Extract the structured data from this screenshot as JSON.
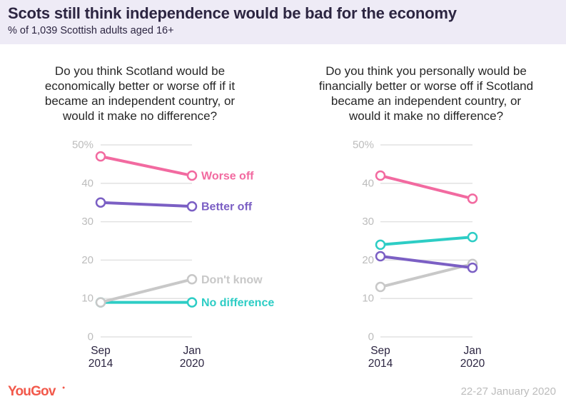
{
  "header": {
    "title": "Scots still think independence would be bad for the economy",
    "subtitle": "% of 1,039 Scottish adults aged 16+"
  },
  "footer": {
    "logo": "YouGov",
    "date": "22-27 January 2020"
  },
  "colors": {
    "header_background": "#eeebf6",
    "title": "#2c2541",
    "worse_off": "#f26aa0",
    "better_off": "#7b5fc4",
    "no_difference": "#2dcdc5",
    "dont_know": "#c8c8c8",
    "gridline": "#e2e2e2",
    "tick_label": "#bcbcbc",
    "logo": "#f2594b"
  },
  "chart_data": [
    {
      "type": "line",
      "title": "Do you think Scotland would be economically better or worse off if it became an independent country, or would it make no difference?",
      "question_lines": [
        "Do you think Scotland would be",
        "economically better or worse off if it",
        "became an independent country, or",
        "would it make no difference?"
      ],
      "x": [
        "Sep 2014",
        "Jan 2020"
      ],
      "x_tick_lines": [
        [
          "Sep",
          "2014"
        ],
        [
          "Jan",
          "2020"
        ]
      ],
      "xlabel": "",
      "ylabel": "",
      "ylim": [
        0,
        50
      ],
      "yticks": [
        0,
        10,
        20,
        30,
        40,
        50
      ],
      "ytick_labels": [
        "0",
        "10",
        "20",
        "30",
        "40",
        "50%"
      ],
      "grid": true,
      "legend": "direct-labels-right",
      "series": [
        {
          "name": "No difference",
          "values": [
            9,
            9
          ],
          "color": "#2dcdc5",
          "show_label": true
        },
        {
          "name": "Don't know",
          "values": [
            9,
            15
          ],
          "color": "#c8c8c8",
          "show_label": true
        },
        {
          "name": "Better off",
          "values": [
            35,
            34
          ],
          "color": "#7b5fc4",
          "show_label": true
        },
        {
          "name": "Worse off",
          "values": [
            47,
            42
          ],
          "color": "#f26aa0",
          "show_label": true
        }
      ]
    },
    {
      "type": "line",
      "title": "Do you think you personally would be financially better or worse off if Scotland became an independent country, or would it make no difference?",
      "question_lines": [
        "Do you think you personally would be",
        "financially better or worse off if Scotland",
        "became an independent country, or",
        "would it make no difference?"
      ],
      "x": [
        "Sep 2014",
        "Jan 2020"
      ],
      "x_tick_lines": [
        [
          "Sep",
          "2014"
        ],
        [
          "Jan",
          "2020"
        ]
      ],
      "xlabel": "",
      "ylabel": "",
      "ylim": [
        0,
        50
      ],
      "yticks": [
        0,
        10,
        20,
        30,
        40,
        50
      ],
      "ytick_labels": [
        "0",
        "10",
        "20",
        "30",
        "40",
        "50%"
      ],
      "grid": true,
      "legend": "none",
      "series": [
        {
          "name": "No difference",
          "values": [
            24,
            26
          ],
          "color": "#2dcdc5",
          "show_label": false
        },
        {
          "name": "Don't know",
          "values": [
            13,
            19
          ],
          "color": "#c8c8c8",
          "show_label": false
        },
        {
          "name": "Better off",
          "values": [
            21,
            18
          ],
          "color": "#7b5fc4",
          "show_label": false
        },
        {
          "name": "Worse off",
          "values": [
            42,
            36
          ],
          "color": "#f26aa0",
          "show_label": false
        }
      ]
    }
  ]
}
